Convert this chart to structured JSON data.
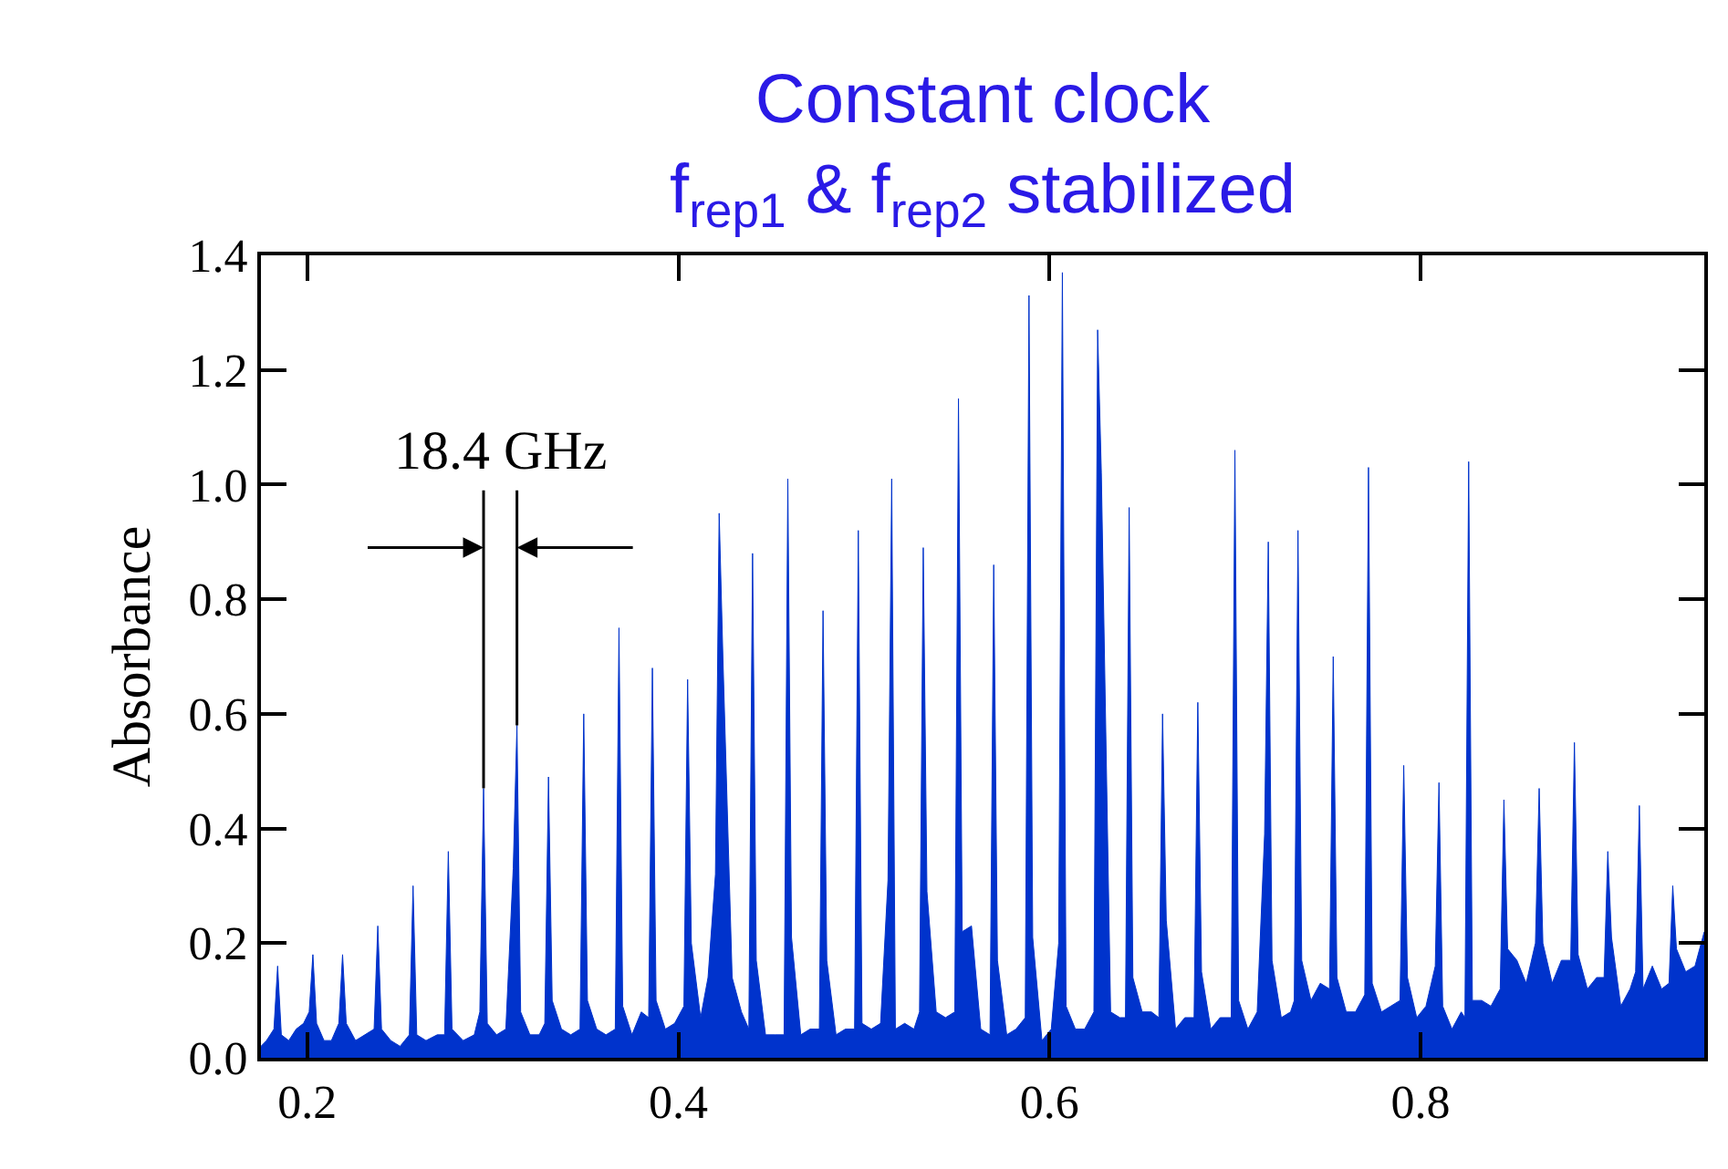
{
  "chart_data": {
    "type": "area",
    "title": "Constant clock",
    "subtitle": "f$_{rep1}$ & f$_{rep2}$ stabilized",
    "ylabel": "Absorbance",
    "xlim": [
      0.175,
      0.953
    ],
    "ylim": [
      0,
      1.4
    ],
    "xticks": [
      0.2,
      0.4,
      0.6,
      0.8
    ],
    "yticks": [
      {
        "value": 0,
        "label": "0.0"
      },
      {
        "value": 0.2,
        "label": "0.2"
      },
      {
        "value": 0.4,
        "label": "0.4"
      },
      {
        "value": 0.6,
        "label": "0.6"
      },
      {
        "value": 0.8,
        "label": "0.8"
      },
      {
        "value": 1.0,
        "label": "1.0"
      },
      {
        "value": 1.2,
        "label": "1.2"
      },
      {
        "value": 1.4,
        "label": "1.4"
      }
    ],
    "annotations": [
      {
        "text": "18.4 GHz",
        "x": 0.313,
        "y": 0.58
      }
    ],
    "series": [
      {
        "color": "#0033cc",
        "x": [
          0.175,
          0.178,
          0.182,
          0.184,
          0.186,
          0.19,
          0.194,
          0.198,
          0.201,
          0.203,
          0.205,
          0.209,
          0.213,
          0.217,
          0.219,
          0.221,
          0.226,
          0.231,
          0.236,
          0.238,
          0.24,
          0.245,
          0.25,
          0.255,
          0.257,
          0.259,
          0.264,
          0.27,
          0.274,
          0.276,
          0.278,
          0.284,
          0.29,
          0.293,
          0.295,
          0.297,
          0.302,
          0.307,
          0.311,
          0.313,
          0.315,
          0.32,
          0.325,
          0.328,
          0.33,
          0.332,
          0.337,
          0.342,
          0.347,
          0.349,
          0.351,
          0.356,
          0.361,
          0.366,
          0.368,
          0.37,
          0.375,
          0.38,
          0.384,
          0.386,
          0.388,
          0.393,
          0.398,
          0.403,
          0.405,
          0.407,
          0.412,
          0.416,
          0.42,
          0.422,
          0.424,
          0.429,
          0.434,
          0.438,
          0.44,
          0.442,
          0.447,
          0.452,
          0.457,
          0.459,
          0.461,
          0.466,
          0.471,
          0.476,
          0.478,
          0.48,
          0.485,
          0.49,
          0.495,
          0.497,
          0.499,
          0.504,
          0.509,
          0.513,
          0.515,
          0.517,
          0.522,
          0.527,
          0.53,
          0.532,
          0.534,
          0.539,
          0.544,
          0.549,
          0.551,
          0.553,
          0.558,
          0.563,
          0.568,
          0.57,
          0.572,
          0.577,
          0.582,
          0.587,
          0.589,
          0.591,
          0.596,
          0.601,
          0.605,
          0.607,
          0.609,
          0.614,
          0.619,
          0.624,
          0.626,
          0.628,
          0.633,
          0.638,
          0.641,
          0.643,
          0.645,
          0.65,
          0.655,
          0.659,
          0.661,
          0.663,
          0.668,
          0.673,
          0.678,
          0.68,
          0.682,
          0.687,
          0.692,
          0.698,
          0.7,
          0.702,
          0.707,
          0.712,
          0.716,
          0.718,
          0.72,
          0.725,
          0.73,
          0.732,
          0.734,
          0.736,
          0.741,
          0.746,
          0.751,
          0.753,
          0.755,
          0.76,
          0.765,
          0.77,
          0.772,
          0.774,
          0.779,
          0.784,
          0.789,
          0.791,
          0.793,
          0.798,
          0.803,
          0.808,
          0.81,
          0.812,
          0.817,
          0.822,
          0.824,
          0.826,
          0.828,
          0.833,
          0.838,
          0.843,
          0.845,
          0.847,
          0.852,
          0.857,
          0.862,
          0.864,
          0.866,
          0.871,
          0.876,
          0.881,
          0.883,
          0.885,
          0.89,
          0.895,
          0.899,
          0.901,
          0.903,
          0.908,
          0.913,
          0.916,
          0.918,
          0.92,
          0.925,
          0.93,
          0.934,
          0.936,
          0.938,
          0.943,
          0.948,
          0.953
        ],
        "values": [
          0.02,
          0.03,
          0.05,
          0.16,
          0.04,
          0.03,
          0.05,
          0.06,
          0.08,
          0.18,
          0.06,
          0.03,
          0.03,
          0.06,
          0.18,
          0.06,
          0.03,
          0.04,
          0.05,
          0.23,
          0.05,
          0.03,
          0.02,
          0.04,
          0.3,
          0.04,
          0.03,
          0.04,
          0.04,
          0.36,
          0.05,
          0.03,
          0.04,
          0.08,
          0.47,
          0.06,
          0.04,
          0.05,
          0.33,
          0.58,
          0.08,
          0.04,
          0.04,
          0.06,
          0.49,
          0.1,
          0.05,
          0.04,
          0.05,
          0.6,
          0.1,
          0.05,
          0.04,
          0.05,
          0.75,
          0.09,
          0.04,
          0.08,
          0.07,
          0.68,
          0.1,
          0.05,
          0.06,
          0.09,
          0.66,
          0.2,
          0.07,
          0.14,
          0.32,
          0.95,
          0.7,
          0.14,
          0.08,
          0.05,
          0.88,
          0.17,
          0.04,
          0.04,
          0.04,
          1.01,
          0.21,
          0.04,
          0.05,
          0.05,
          0.78,
          0.17,
          0.04,
          0.05,
          0.05,
          0.92,
          0.06,
          0.05,
          0.06,
          0.31,
          1.01,
          0.05,
          0.06,
          0.05,
          0.08,
          0.89,
          0.29,
          0.08,
          0.07,
          0.08,
          1.15,
          0.22,
          0.23,
          0.05,
          0.04,
          0.86,
          0.17,
          0.04,
          0.05,
          0.07,
          1.33,
          0.21,
          0.03,
          0.05,
          0.2,
          1.37,
          0.09,
          0.05,
          0.05,
          0.08,
          1.27,
          1.02,
          0.08,
          0.07,
          0.07,
          0.96,
          0.14,
          0.08,
          0.08,
          0.07,
          0.6,
          0.24,
          0.05,
          0.07,
          0.07,
          0.62,
          0.15,
          0.05,
          0.07,
          0.07,
          1.06,
          0.1,
          0.05,
          0.08,
          0.39,
          0.9,
          0.17,
          0.07,
          0.08,
          0.1,
          0.92,
          0.17,
          0.1,
          0.13,
          0.12,
          0.7,
          0.14,
          0.08,
          0.08,
          0.11,
          1.03,
          0.13,
          0.08,
          0.09,
          0.1,
          0.51,
          0.14,
          0.07,
          0.09,
          0.16,
          0.48,
          0.09,
          0.05,
          0.08,
          0.07,
          1.04,
          0.1,
          0.1,
          0.09,
          0.12,
          0.45,
          0.19,
          0.17,
          0.13,
          0.2,
          0.47,
          0.2,
          0.13,
          0.17,
          0.17,
          0.55,
          0.18,
          0.12,
          0.14,
          0.14,
          0.36,
          0.21,
          0.09,
          0.12,
          0.15,
          0.44,
          0.12,
          0.16,
          0.12,
          0.13,
          0.3,
          0.19,
          0.15,
          0.16,
          0.22
        ]
      }
    ]
  }
}
